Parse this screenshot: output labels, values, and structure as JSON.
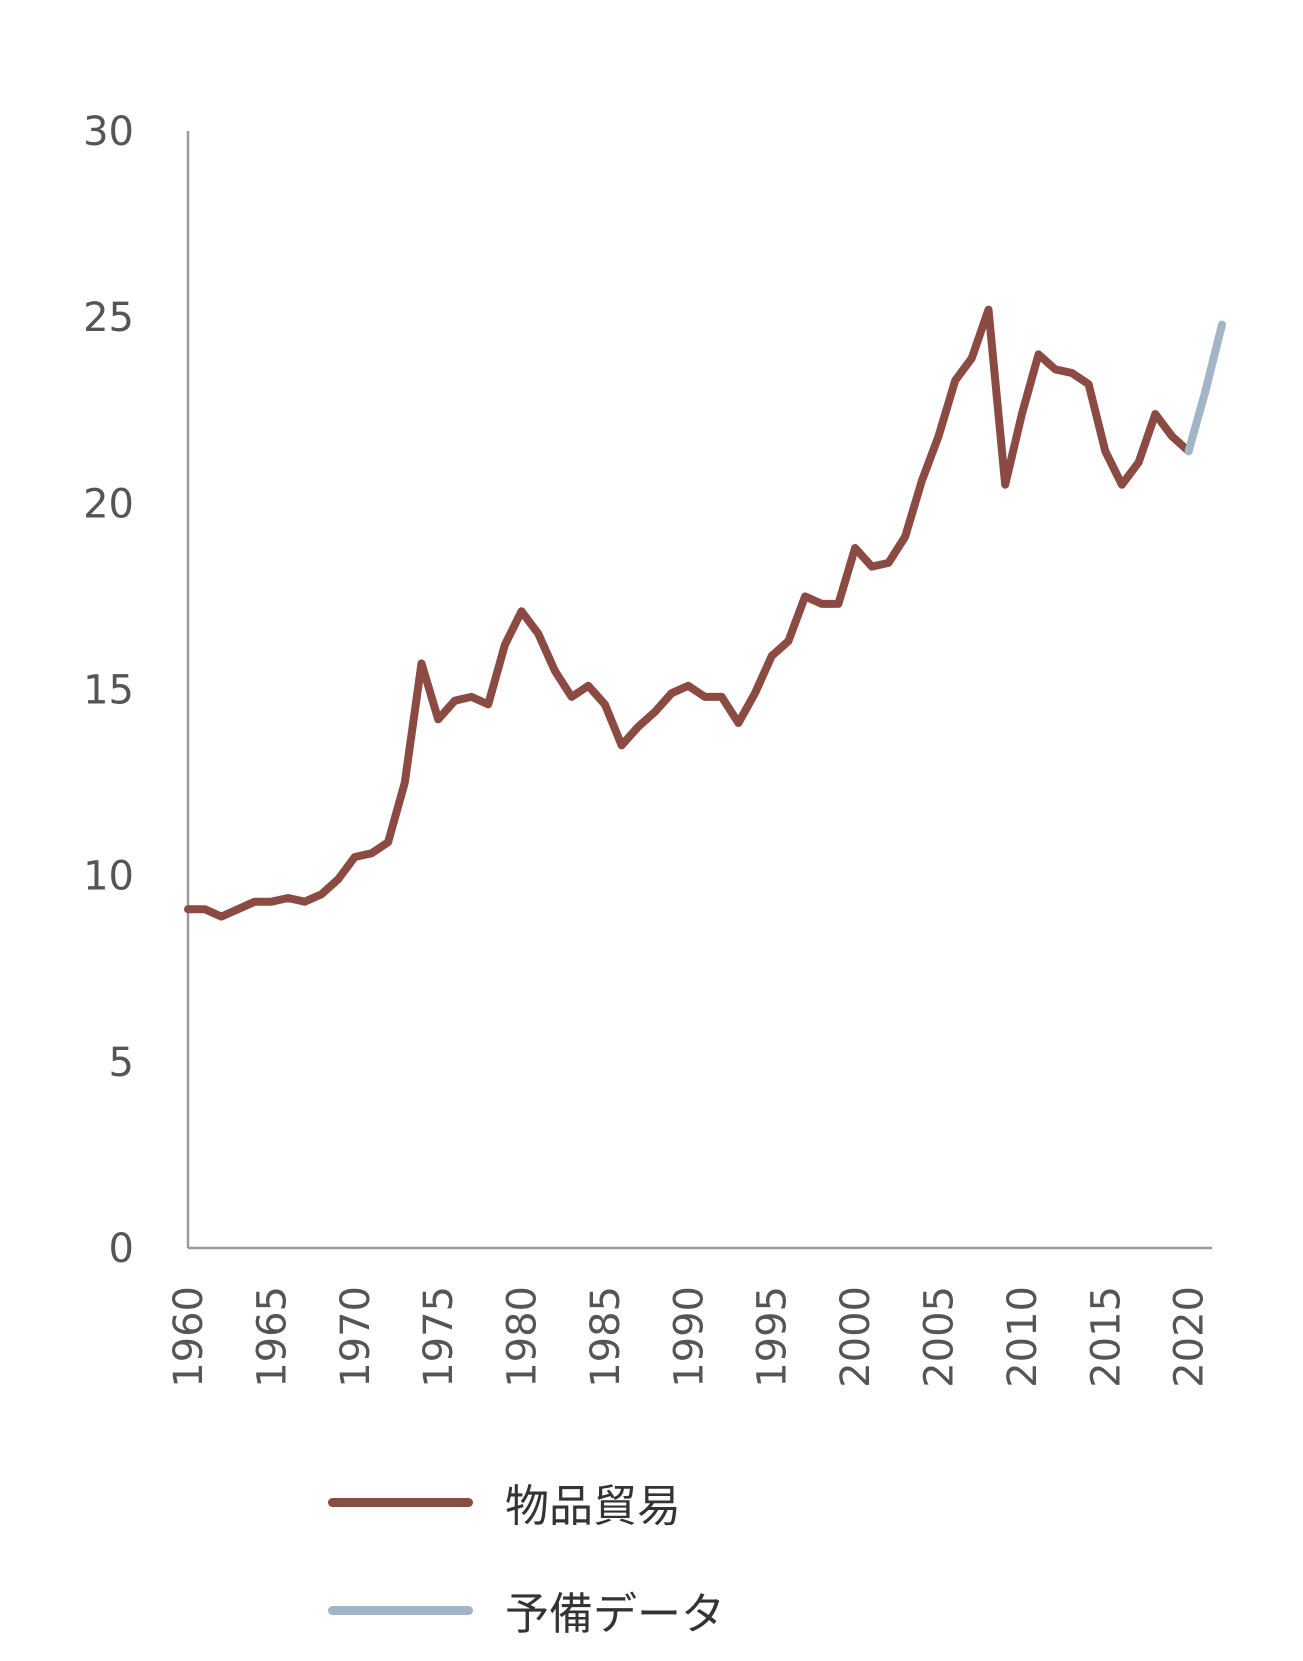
{
  "chart_data": {
    "type": "line",
    "title": "",
    "xlabel": "",
    "ylabel": "",
    "ylim": [
      0,
      30
    ],
    "xlim": [
      1960,
      2022
    ],
    "yticks": [
      "0",
      "5",
      "10",
      "15",
      "20",
      "25",
      "30"
    ],
    "xticks": [
      "1960",
      "1965",
      "1970",
      "1975",
      "1980",
      "1985",
      "1990",
      "1995",
      "2000",
      "2005",
      "2010",
      "2015",
      "2020"
    ],
    "grid": false,
    "legend_position": "bottom",
    "series": [
      {
        "name": "物品貿易",
        "color": "#8b4a42",
        "x": [
          1960,
          1961,
          1962,
          1963,
          1964,
          1965,
          1966,
          1967,
          1968,
          1969,
          1970,
          1971,
          1972,
          1973,
          1974,
          1975,
          1976,
          1977,
          1978,
          1979,
          1980,
          1981,
          1982,
          1983,
          1984,
          1985,
          1986,
          1987,
          1988,
          1989,
          1990,
          1991,
          1992,
          1993,
          1994,
          1995,
          1996,
          1997,
          1998,
          1999,
          2000,
          2001,
          2002,
          2003,
          2004,
          2005,
          2006,
          2007,
          2008,
          2009,
          2010,
          2011,
          2012,
          2013,
          2014,
          2015,
          2016,
          2017,
          2018,
          2019,
          2020
        ],
        "y": [
          9.1,
          9.1,
          8.9,
          9.1,
          9.3,
          9.3,
          9.4,
          9.3,
          9.5,
          9.9,
          10.5,
          10.6,
          10.9,
          12.5,
          15.7,
          14.2,
          14.7,
          14.8,
          14.6,
          16.2,
          17.1,
          16.5,
          15.5,
          14.8,
          15.1,
          14.6,
          13.5,
          14.0,
          14.4,
          14.9,
          15.1,
          14.8,
          14.8,
          14.1,
          14.9,
          15.9,
          16.3,
          17.5,
          17.3,
          17.3,
          18.8,
          18.3,
          18.4,
          19.1,
          20.6,
          21.8,
          23.3,
          23.9,
          25.2,
          20.5,
          22.4,
          24.0,
          23.6,
          23.5,
          23.2,
          21.4,
          20.5,
          21.1,
          22.4,
          21.8,
          21.4
        ]
      },
      {
        "name": "予備データ",
        "color": "#a3b3c8",
        "x": [
          2020,
          2021,
          2022
        ],
        "y": [
          21.4,
          23.0,
          24.8
        ]
      }
    ]
  }
}
